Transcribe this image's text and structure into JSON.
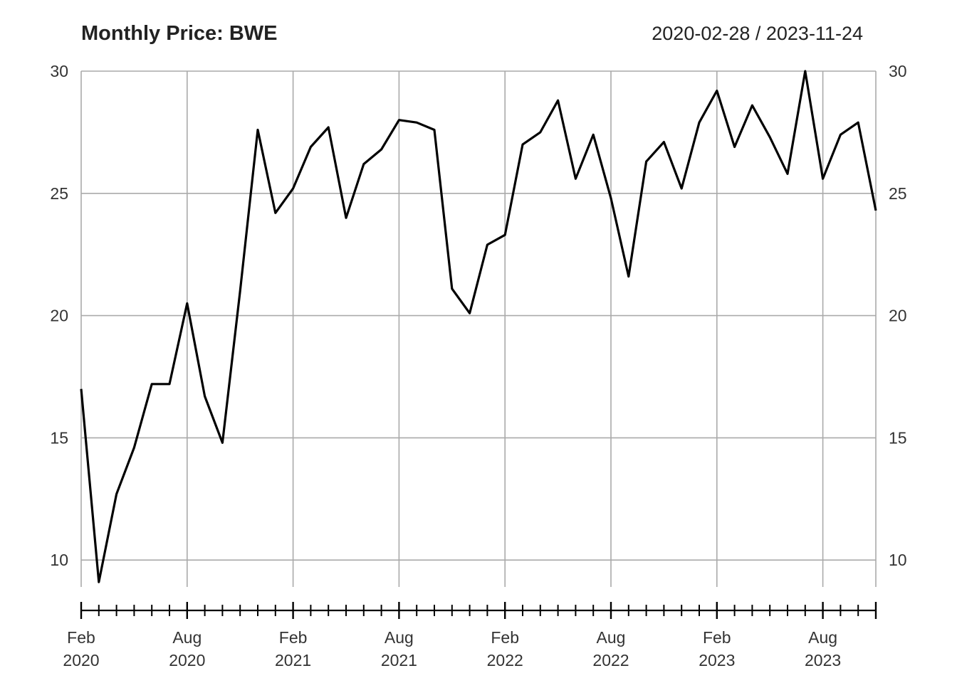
{
  "header": {
    "title": "Monthly Price: BWE",
    "date_range": "2020-02-28 / 2023-11-24"
  },
  "chart_data": {
    "type": "line",
    "title": "Monthly Price: BWE",
    "subtitle": "2020-02-28 / 2023-11-24",
    "xlabel": "",
    "ylabel": "",
    "ylim": [
      8.9,
      30
    ],
    "yticks": [
      10,
      15,
      20,
      25,
      30
    ],
    "grid": true,
    "legend": "none",
    "line_color": "#000000",
    "x_tick_labels": [
      {
        "date": "2020-02",
        "month": "Feb",
        "year": "2020"
      },
      {
        "date": "2020-08",
        "month": "Aug",
        "year": "2020"
      },
      {
        "date": "2021-02",
        "month": "Feb",
        "year": "2021"
      },
      {
        "date": "2021-08",
        "month": "Aug",
        "year": "2021"
      },
      {
        "date": "2022-02",
        "month": "Feb",
        "year": "2022"
      },
      {
        "date": "2022-08",
        "month": "Aug",
        "year": "2022"
      },
      {
        "date": "2023-02",
        "month": "Feb",
        "year": "2023"
      },
      {
        "date": "2023-08",
        "month": "Aug",
        "year": "2023"
      }
    ],
    "series": [
      {
        "x": [
          "2020-02",
          "2020-03",
          "2020-04",
          "2020-05",
          "2020-06",
          "2020-07",
          "2020-08",
          "2020-09",
          "2020-10",
          "2020-11",
          "2020-12",
          "2021-01",
          "2021-02",
          "2021-03",
          "2021-04",
          "2021-05",
          "2021-06",
          "2021-07",
          "2021-08",
          "2021-09",
          "2021-10",
          "2021-11",
          "2021-12",
          "2022-01",
          "2022-02",
          "2022-03",
          "2022-04",
          "2022-05",
          "2022-06",
          "2022-07",
          "2022-08",
          "2022-09",
          "2022-10",
          "2022-11",
          "2022-12",
          "2023-01",
          "2023-02",
          "2023-03",
          "2023-04",
          "2023-05",
          "2023-06",
          "2023-07",
          "2023-08",
          "2023-09",
          "2023-10",
          "2023-11"
        ],
        "values": [
          17.0,
          9.1,
          12.7,
          14.6,
          17.2,
          17.2,
          20.5,
          16.7,
          14.8,
          21.0,
          27.6,
          24.2,
          25.2,
          26.9,
          27.7,
          24.0,
          26.2,
          26.8,
          28.0,
          27.9,
          27.6,
          21.1,
          20.1,
          22.9,
          23.3,
          27.0,
          27.5,
          28.8,
          25.6,
          27.4,
          24.8,
          21.6,
          26.3,
          27.1,
          25.2,
          27.9,
          29.2,
          26.9,
          28.6,
          27.3,
          25.8,
          30.0,
          25.6,
          27.4,
          27.9,
          24.3
        ]
      }
    ]
  }
}
